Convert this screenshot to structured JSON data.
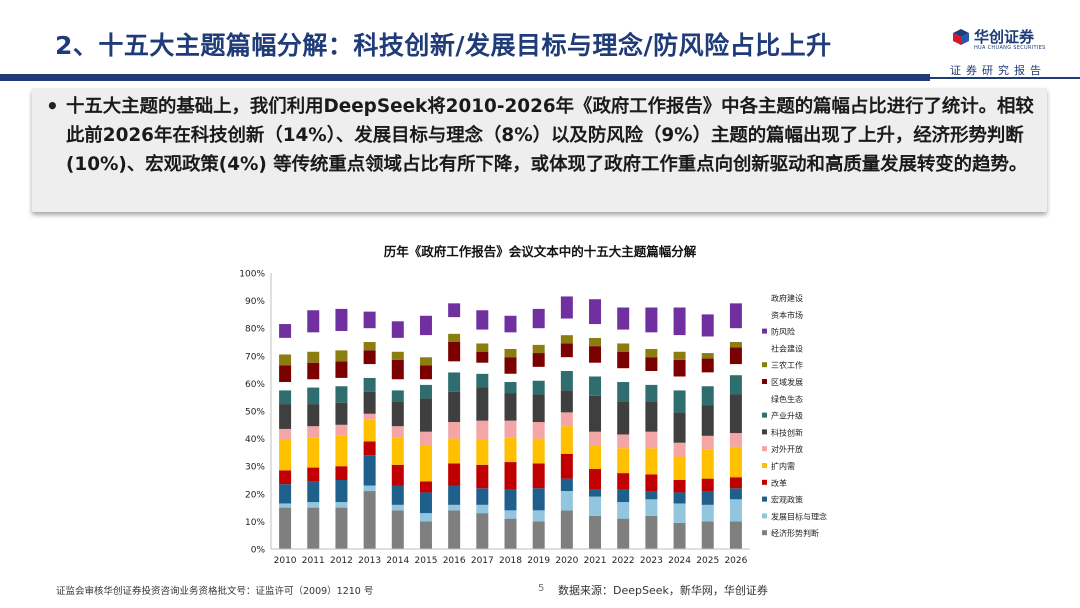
{
  "header": {
    "title": "2、十五大主题篇幅分解：科技创新/发展目标与理念/防风险占比上升",
    "logo_name": "华创证券",
    "logo_english": "HUA CHUANG SECURITIES",
    "tagline": "证券研究报告"
  },
  "callout": {
    "bullet": "•",
    "text": "十五大主题的基础上，我们利用DeepSeek将2010-2026年《政府工作报告》中各主题的篇幅占比进行了统计。相较此前2026年在科技创新（14%）、发展目标与理念（8%）以及防风险（9%）主题的篇幅出现了上升，经济形势判断(10%)、宏观政策(4%) 等传统重点领域占比有所下降，或体现了政府工作重点向创新驱动和高质量发展转变的趋势。"
  },
  "footer": {
    "license": "证监会审核华创证券投资咨询业务资格批文号：证监许可（2009）1210 号",
    "page_number": "5",
    "source": "数据来源：DeepSeek，新华网，华创证券"
  },
  "colors": {
    "brand_navy": "#1f3b78",
    "logo_red": "#d7182a"
  },
  "chart_data": {
    "type": "bar",
    "stacked": true,
    "title": "历年《政府工作报告》会议文本中的十五大主题篇幅分解",
    "xlabel": "",
    "ylabel": "",
    "ylim": [
      0,
      100
    ],
    "y_ticks": [
      "0%",
      "10%",
      "20%",
      "30%",
      "40%",
      "50%",
      "60%",
      "70%",
      "80%",
      "90%",
      "100%"
    ],
    "legend_position": "right",
    "categories": [
      "2010",
      "2011",
      "2012",
      "2013",
      "2014",
      "2015",
      "2016",
      "2017",
      "2018",
      "2019",
      "2020",
      "2021",
      "2022",
      "2023",
      "2024",
      "2025",
      "2026"
    ],
    "series": [
      {
        "name": "经济形势判断",
        "color": "#7f7f7f",
        "values": [
          15,
          15,
          15,
          21,
          14,
          10,
          14,
          13,
          11,
          10,
          14,
          12,
          11,
          12,
          9.5,
          10,
          10
        ]
      },
      {
        "name": "发展目标与理念",
        "color": "#92c5de",
        "values": [
          1.5,
          2,
          2,
          2,
          2,
          3,
          2,
          3,
          3,
          4,
          7,
          7,
          6,
          6,
          7,
          6,
          8
        ]
      },
      {
        "name": "宏观政策",
        "color": "#1f5f8b",
        "values": [
          7,
          7.5,
          8,
          11,
          7,
          7.5,
          7,
          6,
          7.5,
          8,
          4.5,
          2.5,
          4.5,
          3,
          4,
          5,
          4
        ]
      },
      {
        "name": "改革",
        "color": "#c00000",
        "values": [
          5,
          5,
          5,
          5,
          7.5,
          4,
          8,
          8.5,
          10,
          9,
          9,
          7.5,
          6,
          6,
          4.5,
          4.5,
          4
        ]
      },
      {
        "name": "扩内需",
        "color": "#ffc000",
        "values": [
          11,
          11,
          11,
          8,
          10,
          13,
          9,
          9,
          9,
          9,
          10,
          8.5,
          9,
          9.5,
          8.5,
          10.5,
          11
        ]
      },
      {
        "name": "对外开放",
        "color": "#f4a6a6",
        "values": [
          4,
          4,
          4,
          2,
          4,
          5,
          6,
          7,
          6,
          6,
          5,
          5,
          5,
          6,
          5,
          5,
          5
        ]
      },
      {
        "name": "科技创新",
        "color": "#3f3f3f",
        "values": [
          9,
          8,
          8,
          8,
          9,
          12,
          11,
          12,
          10,
          10,
          8,
          13,
          12,
          11,
          11,
          11,
          14
        ]
      },
      {
        "name": "产业升级",
        "color": "#2e6e6e",
        "values": [
          5,
          6,
          6,
          5,
          4,
          5,
          7,
          5,
          4,
          5,
          7,
          7,
          7,
          6,
          8,
          7,
          7
        ]
      },
      {
        "name": "绿色生态",
        "color": "#ffffff",
        "values": [
          3,
          3,
          3,
          5,
          4,
          2,
          4,
          4,
          3,
          5,
          5,
          5,
          5,
          5,
          5,
          5,
          4
        ]
      },
      {
        "name": "区域发展",
        "color": "#7b0000",
        "values": [
          6,
          6,
          6,
          5,
          7,
          5,
          7,
          4,
          6,
          5,
          5,
          6,
          6,
          5,
          6,
          5,
          6
        ]
      },
      {
        "name": "三农工作",
        "color": "#8b7d10",
        "values": [
          4,
          4,
          4,
          3,
          3,
          3,
          3,
          3,
          3,
          3,
          3,
          3,
          3,
          3,
          3,
          2,
          2
        ]
      },
      {
        "name": "社会建设",
        "color": "#ffffff",
        "values": [
          6,
          7,
          7,
          5,
          5,
          8,
          6,
          5,
          6,
          6,
          6,
          5,
          5,
          6,
          6,
          6,
          5
        ]
      },
      {
        "name": "防风险",
        "color": "#7030a0",
        "values": [
          5,
          8,
          8,
          6,
          6,
          7,
          5,
          7,
          6,
          7,
          8,
          9,
          8,
          9,
          10,
          8,
          9
        ]
      },
      {
        "name": "资本市场",
        "color": "#ffffff",
        "values": [
          0,
          0,
          0,
          0,
          0,
          0,
          0,
          0,
          0,
          0,
          0,
          0,
          0,
          0,
          0,
          0,
          0
        ]
      },
      {
        "name": "政府建设",
        "color": "#ffffff",
        "values": [
          0,
          0,
          0,
          0,
          0,
          0,
          0,
          0,
          0,
          0,
          0,
          0,
          0,
          0,
          0,
          0,
          0
        ]
      }
    ],
    "legend_order": [
      "政府建设",
      "资本市场",
      "防风险",
      "社会建设",
      "三农工作",
      "区域发展",
      "绿色生态",
      "产业升级",
      "科技创新",
      "对外开放",
      "扩内需",
      "改革",
      "宏观政策",
      "发展目标与理念",
      "经济形势判断"
    ]
  }
}
